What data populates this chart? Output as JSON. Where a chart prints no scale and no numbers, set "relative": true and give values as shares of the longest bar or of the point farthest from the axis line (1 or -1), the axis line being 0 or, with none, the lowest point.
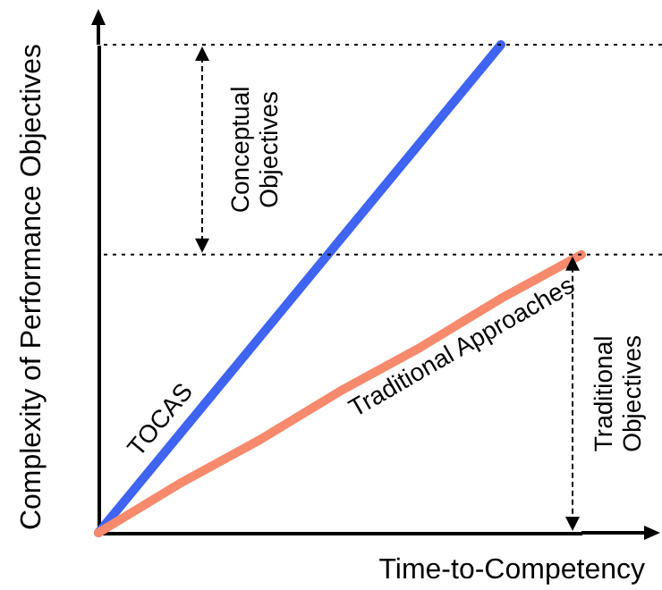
{
  "chart_data": {
    "type": "line",
    "relative": true,
    "xlabel": "Time-to-Competency",
    "ylabel": "Complexity of Performance Objectives",
    "categories": [
      null,
      null,
      null,
      null,
      null,
      null,
      null
    ],
    "series": [
      {
        "name": "TOCAS",
        "color": "#3f64f2",
        "values": [
          0,
          0.2,
          0.4,
          0.6,
          0.8,
          1,
          null
        ]
      },
      {
        "name": "Traditional Approaches",
        "color": "#f78a6c",
        "values": [
          0,
          0.1,
          0.19,
          0.29,
          0.38,
          0.48,
          0.57
        ]
      }
    ],
    "ref_lines": [
      {
        "axis": "y",
        "value": 1,
        "line_style": "dotted"
      },
      {
        "axis": "y",
        "value": 0.57,
        "line_style": "dotted"
      }
    ],
    "annotations": [
      "Conceptual Objectives",
      "Traditional Objectives"
    ],
    "grid": false,
    "marker": "none",
    "line_style": "solid"
  }
}
